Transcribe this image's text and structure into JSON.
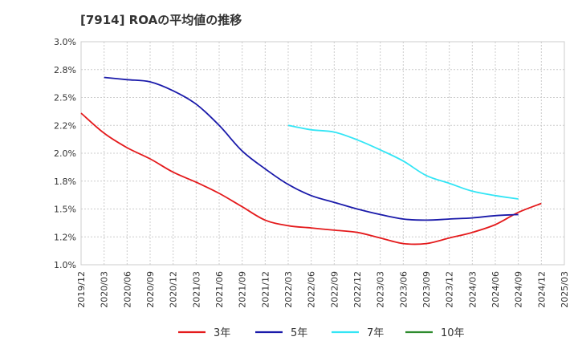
{
  "chart_data": {
    "type": "line",
    "title": "[7914]  ROAの平均値の推移",
    "xlabel": "",
    "ylabel": "",
    "ylim": [
      1.0,
      3.0
    ],
    "y_ticks": [
      "1.0%",
      "1.2%",
      "1.5%",
      "1.8%",
      "2.0%",
      "2.2%",
      "2.5%",
      "2.8%",
      "3.0%"
    ],
    "x_ticks": [
      "2019/12",
      "2020/03",
      "2020/06",
      "2020/09",
      "2020/12",
      "2021/03",
      "2021/06",
      "2021/09",
      "2021/12",
      "2022/03",
      "2022/06",
      "2022/09",
      "2022/12",
      "2023/03",
      "2023/06",
      "2023/09",
      "2023/12",
      "2024/03",
      "2024/06",
      "2024/09",
      "2024/12",
      "2025/03"
    ],
    "grid": true,
    "legend_position": "bottom",
    "series": [
      {
        "name": "3年",
        "color": "#e41a1c",
        "x_start": "2019/12",
        "values": [
          2.36,
          2.18,
          2.05,
          1.95,
          1.83,
          1.74,
          1.64,
          1.52,
          1.4,
          1.35,
          1.33,
          1.31,
          1.29,
          1.24,
          1.19,
          1.19,
          1.24,
          1.29,
          1.36,
          1.47,
          1.55
        ]
      },
      {
        "name": "5年",
        "color": "#1a1aaa",
        "x_start": "2020/03",
        "values": [
          2.68,
          2.66,
          2.64,
          2.56,
          2.44,
          2.25,
          2.02,
          1.86,
          1.72,
          1.62,
          1.56,
          1.5,
          1.45,
          1.41,
          1.4,
          1.41,
          1.42,
          1.44,
          1.45
        ]
      },
      {
        "name": "7年",
        "color": "#33e5f5",
        "x_start": "2022/03",
        "values": [
          2.25,
          2.21,
          2.19,
          2.12,
          2.03,
          1.93,
          1.8,
          1.73,
          1.66,
          1.62,
          1.59
        ]
      },
      {
        "name": "10年",
        "color": "#2e8b2e",
        "x_start": "2022/03",
        "values": []
      }
    ]
  }
}
